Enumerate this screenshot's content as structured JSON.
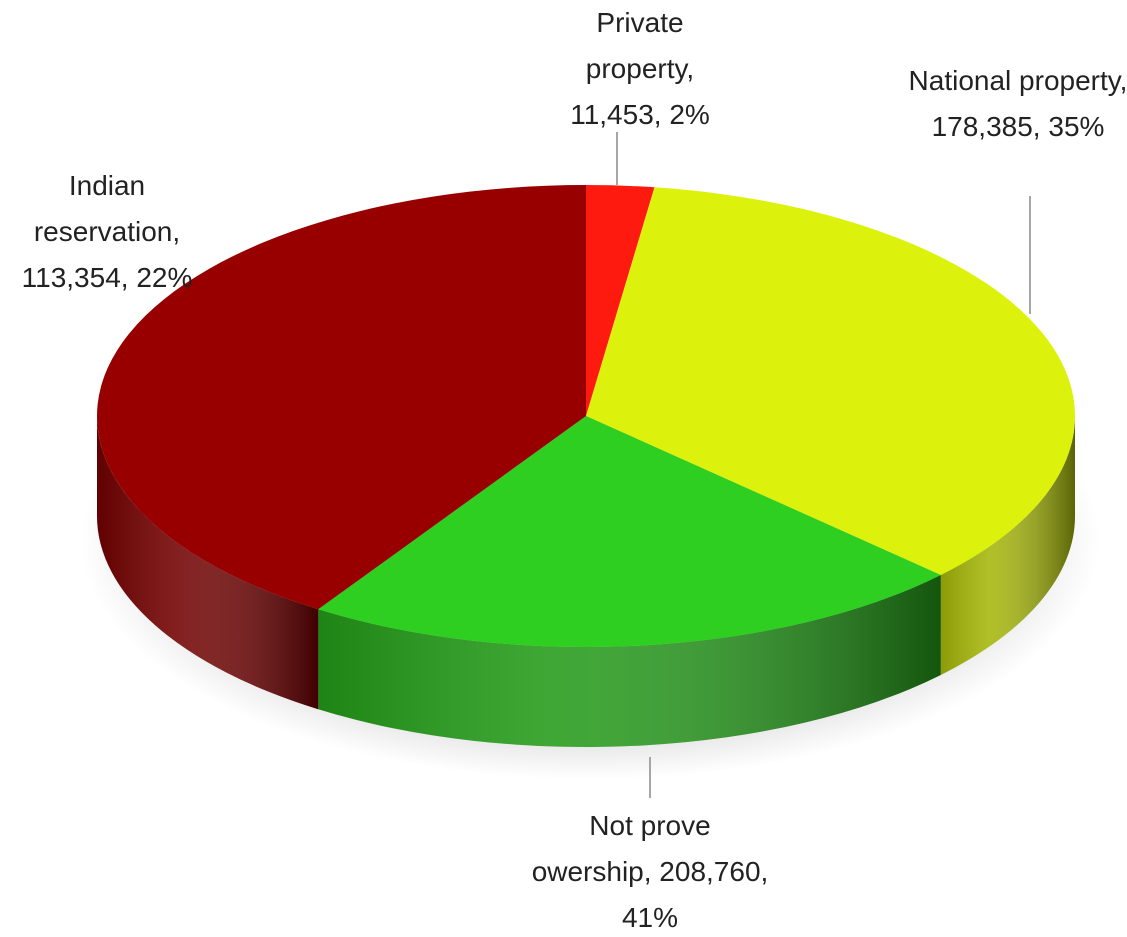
{
  "chart_data": {
    "type": "pie3d",
    "labels": [
      "Private property, 11,453, 2%",
      "National property, 178,385, 35%",
      "Indian reservation, 113,354, 22%",
      "Not prove owership, 208,760, 41%"
    ],
    "values": [
      11453,
      178385,
      113354,
      208760
    ],
    "colors": [
      "#ff1a10",
      "#dcf20c",
      "#2ecf20",
      "#980000"
    ]
  }
}
